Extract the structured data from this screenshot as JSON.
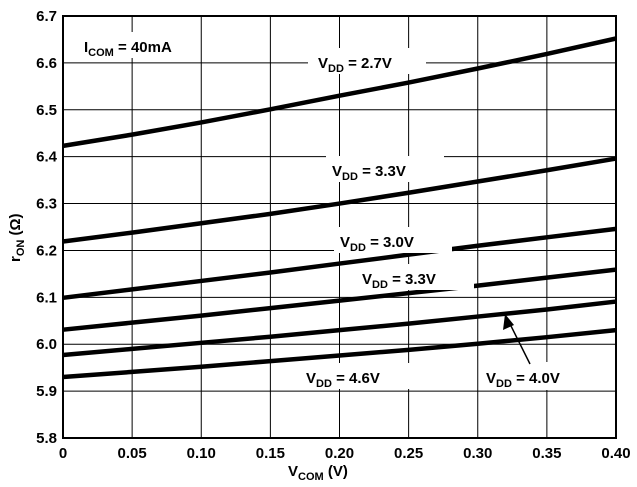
{
  "chart_data": {
    "type": "line",
    "xlabel": {
      "main": "V",
      "sub": "COM",
      "rest": " (V)"
    },
    "ylabel": {
      "main": "r",
      "sub": "ON",
      "rest": " (Ω)"
    },
    "xlim": [
      0,
      0.4
    ],
    "ylim": [
      5.8,
      6.7
    ],
    "x_ticks": [
      "0",
      "0.05",
      "0.10",
      "0.15",
      "0.20",
      "0.25",
      "0.30",
      "0.35",
      "0.40"
    ],
    "y_ticks": [
      "5.8",
      "5.9",
      "6.0",
      "6.1",
      "6.2",
      "6.3",
      "6.4",
      "6.5",
      "6.6",
      "6.7"
    ],
    "grid": true,
    "condition": {
      "main": "I",
      "sub": "COM",
      "rest": " = 40mA"
    },
    "x": [
      0,
      0.05,
      0.1,
      0.15,
      0.2,
      0.25,
      0.3,
      0.35,
      0.4
    ],
    "series": [
      {
        "label": {
          "main": "V",
          "sub": "DD",
          "rest": " = 2.7V"
        },
        "values": [
          6.423,
          6.447,
          6.473,
          6.501,
          6.53,
          6.558,
          6.588,
          6.619,
          6.652
        ]
      },
      {
        "label": {
          "main": "V",
          "sub": "DD",
          "rest": " = 3.3V"
        },
        "values": [
          6.219,
          6.238,
          6.258,
          6.278,
          6.3,
          6.323,
          6.347,
          6.371,
          6.396
        ]
      },
      {
        "label": {
          "main": "V",
          "sub": "DD",
          "rest": " = 3.0V"
        },
        "values": [
          6.099,
          6.117,
          6.135,
          6.153,
          6.172,
          6.191,
          6.21,
          6.228,
          6.246
        ]
      },
      {
        "label": {
          "main": "V",
          "sub": "DD",
          "rest": " = 3.3V"
        },
        "values": [
          6.031,
          6.046,
          6.061,
          6.077,
          6.093,
          6.109,
          6.125,
          6.142,
          6.159
        ]
      },
      {
        "label": {
          "main": "V",
          "sub": "DD",
          "rest": " = 4.0V"
        },
        "values": [
          5.977,
          5.99,
          6.003,
          6.016,
          6.03,
          6.044,
          6.059,
          6.074,
          6.091
        ]
      },
      {
        "label": {
          "main": "V",
          "sub": "DD",
          "rest": " = 4.6V"
        },
        "values": [
          5.93,
          5.941,
          5.952,
          5.964,
          5.976,
          5.988,
          6.001,
          6.015,
          6.03
        ]
      }
    ]
  }
}
